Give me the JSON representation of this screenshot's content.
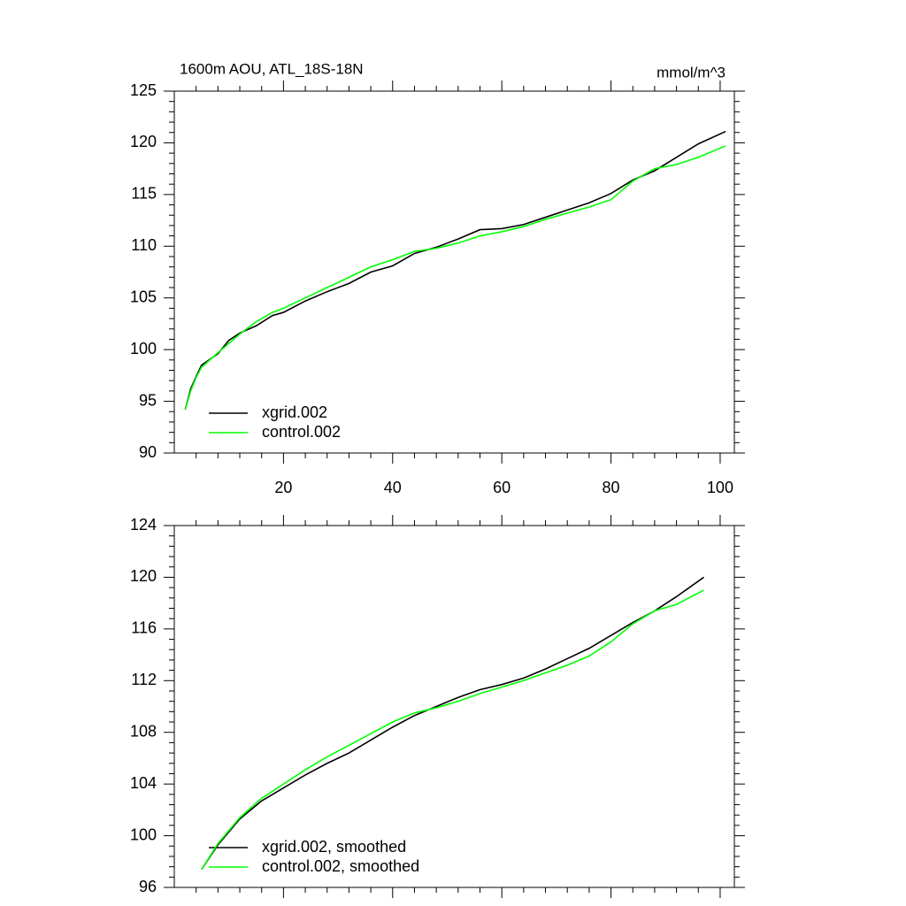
{
  "chart_data": [
    {
      "type": "line",
      "title": "1600m AOU, ATL_18S-18N",
      "units": "mmol/m^3",
      "x": [
        2,
        3,
        4,
        5,
        8,
        10,
        12,
        15,
        18,
        20,
        24,
        28,
        32,
        36,
        40,
        44,
        48,
        52,
        56,
        60,
        64,
        68,
        72,
        76,
        80,
        84,
        88,
        92,
        96,
        101
      ],
      "series": [
        {
          "name": "xgrid.002",
          "color": "#000000",
          "values": [
            94.2,
            96.2,
            97.4,
            98.5,
            99.6,
            100.9,
            101.6,
            102.3,
            103.3,
            103.6,
            104.7,
            105.6,
            106.4,
            107.5,
            108.1,
            109.3,
            109.9,
            110.7,
            111.6,
            111.7,
            112.1,
            112.8,
            113.5,
            114.2,
            115.1,
            116.4,
            117.3,
            118.6,
            119.9,
            121.1
          ]
        },
        {
          "name": "control.002",
          "color": "#00ff00",
          "values": [
            94.2,
            96.0,
            97.3,
            98.3,
            99.7,
            100.6,
            101.5,
            102.7,
            103.6,
            104.0,
            105.0,
            106.0,
            107.0,
            108.0,
            108.7,
            109.5,
            109.8,
            110.3,
            111.0,
            111.4,
            111.9,
            112.6,
            113.2,
            113.8,
            114.5,
            116.3,
            117.5,
            117.9,
            118.6,
            119.7
          ]
        }
      ],
      "xlim": [
        0,
        102.6
      ],
      "xticks": [
        20,
        40,
        60,
        80,
        100
      ],
      "xtick_labels": true,
      "ylim": [
        90,
        125
      ],
      "yticks": [
        90,
        95,
        100,
        105,
        110,
        115,
        120,
        125
      ],
      "legend": "lower left"
    },
    {
      "type": "line",
      "x": [
        5,
        8,
        12,
        16,
        20,
        24,
        28,
        32,
        36,
        40,
        44,
        48,
        52,
        56,
        60,
        64,
        68,
        72,
        76,
        80,
        84,
        88,
        92,
        97
      ],
      "series": [
        {
          "name": "xgrid.002, smoothed",
          "color": "#000000",
          "values": [
            97.4,
            99.3,
            101.3,
            102.7,
            103.7,
            104.7,
            105.6,
            106.4,
            107.4,
            108.4,
            109.3,
            110.0,
            110.7,
            111.3,
            111.7,
            112.2,
            112.9,
            113.7,
            114.5,
            115.5,
            116.5,
            117.4,
            118.5,
            120.0
          ]
        },
        {
          "name": "control.002, smoothed",
          "color": "#00ff00",
          "values": [
            97.4,
            99.4,
            101.4,
            102.9,
            104.0,
            105.1,
            106.1,
            107.0,
            107.9,
            108.8,
            109.5,
            109.9,
            110.4,
            111.0,
            111.5,
            112.0,
            112.6,
            113.2,
            113.9,
            115.0,
            116.4,
            117.4,
            117.9,
            119.0
          ]
        }
      ],
      "xlim": [
        0,
        102.6
      ],
      "xticks": [
        20,
        40,
        60,
        80,
        100
      ],
      "xtick_labels": false,
      "ylim": [
        96,
        124
      ],
      "yticks": [
        96,
        100,
        104,
        108,
        112,
        116,
        120,
        124
      ],
      "legend": "lower left"
    }
  ]
}
